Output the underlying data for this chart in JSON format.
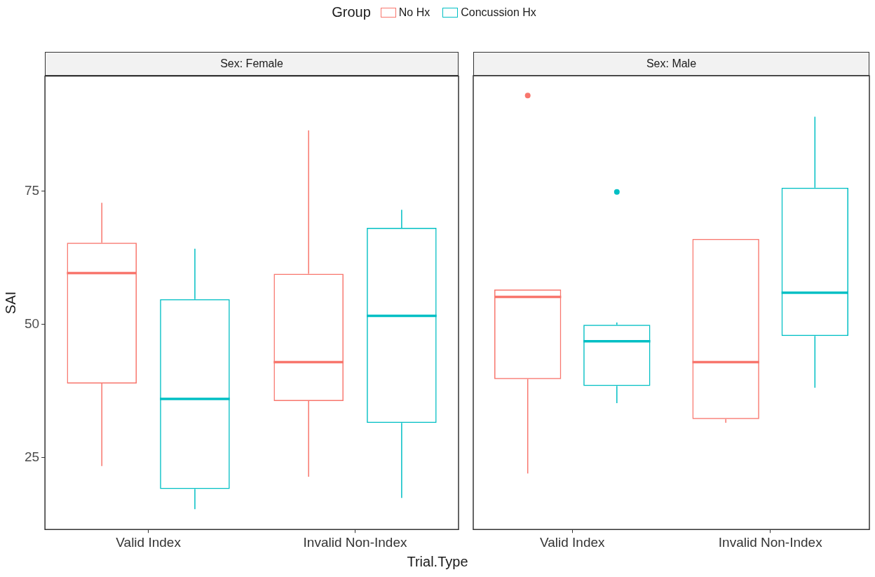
{
  "chart_data": [
    {
      "type": "box",
      "title": "Sex: Female",
      "xlabel": "Trial.Type",
      "ylabel": "SAI",
      "legend_title": "Group",
      "legend": "top",
      "grid": false,
      "categories": [
        "Valid Index",
        "Invalid Non-Index"
      ],
      "ylim": [
        11.5,
        96.6
      ],
      "yticks": [
        25,
        50,
        75
      ],
      "series": [
        {
          "name": "No Hx",
          "color": "#f8766d",
          "boxes": [
            {
              "low": 23.4,
              "q1": 38.9,
              "median": 59.6,
              "q3": 65.3,
              "high": 72.8
            },
            {
              "low": 21.4,
              "q1": 35.6,
              "median": 42.9,
              "q3": 59.5,
              "high": 86.4
            }
          ]
        },
        {
          "name": "Concussion Hx",
          "color": "#00bfc4",
          "boxes": [
            {
              "low": 15.3,
              "q1": 19.1,
              "median": 36.0,
              "q3": 54.7,
              "high": 64.2
            },
            {
              "low": 17.4,
              "q1": 31.5,
              "median": 51.6,
              "q3": 68.1,
              "high": 71.5
            }
          ]
        }
      ]
    },
    {
      "type": "box",
      "title": "Sex: Male",
      "grid": false,
      "tick_labels": "x",
      "categories": [
        "Valid Index",
        "Invalid Non-Index"
      ],
      "ylim": [
        11.5,
        96.6
      ],
      "yticks": [
        25,
        50,
        75
      ],
      "series": [
        {
          "color": "#f8766d",
          "boxes": [
            {
              "low": 22.0,
              "q1": 39.7,
              "median": 55.1,
              "q3": 56.5,
              "high": 56.5,
              "outliers": [
                92.9
              ]
            },
            {
              "low": 31.5,
              "q1": 32.2,
              "median": 42.9,
              "q3": 66.0,
              "high": 66.0
            }
          ]
        },
        {
          "color": "#00bfc4",
          "boxes": [
            {
              "low": 35.2,
              "q1": 38.4,
              "median": 46.8,
              "q3": 49.9,
              "high": 50.3,
              "outliers": [
                74.8
              ]
            },
            {
              "low": 38.1,
              "q1": 47.8,
              "median": 55.9,
              "q3": 75.6,
              "high": 88.9
            }
          ]
        }
      ]
    }
  ]
}
